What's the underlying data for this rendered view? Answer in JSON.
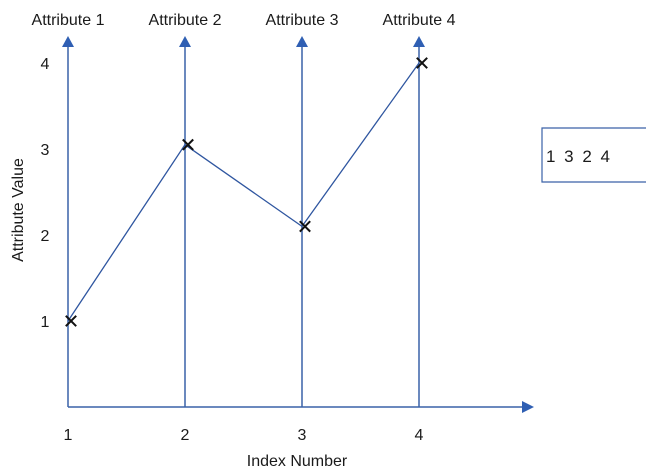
{
  "chart_data": {
    "type": "line",
    "title": "",
    "xlabel": "Index Number",
    "ylabel": "Attribute Value",
    "x": [
      1,
      2,
      3,
      4
    ],
    "values": [
      1,
      3.05,
      2.1,
      4
    ],
    "x_tick_labels": [
      "1",
      "2",
      "3",
      "4"
    ],
    "y_tick_labels": [
      "1",
      "2",
      "3",
      "4"
    ],
    "attribute_labels": [
      "Attribute 1",
      "Attribute 2",
      "Attribute 3",
      "Attribute 4"
    ],
    "vector_label": "1 3 2 4",
    "ylim": [
      0,
      4.3
    ],
    "grid": false,
    "colors": {
      "axis": "#2f5fb3",
      "line": "#2f56a0",
      "marker": "#111111"
    }
  }
}
